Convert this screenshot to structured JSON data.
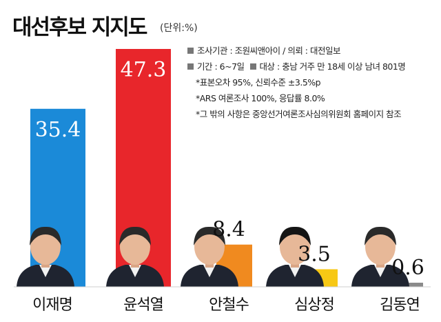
{
  "header": {
    "title": "대선후보 지지도",
    "unit": "(단위:%)"
  },
  "notes": {
    "agency": "조사기관 : 조원씨앤아이 / 의뢰 : 대전일보",
    "period": "기간 : 6~7일",
    "target": "대상 : 충남 거주 만 18세 이상 남녀 801명",
    "error": "*표본오차 95%, 신뢰수준 ±3.5%p",
    "method": "*ARS 여론조사 100%, 응답률 8.0%",
    "etc": "*그 밖의 사항은 중앙선거여론조사심의위원회 홈페이지 참조"
  },
  "chart_data": {
    "type": "bar",
    "title": "대선후보 지지도",
    "unit": "%",
    "categories": [
      "이재명",
      "윤석열",
      "안철수",
      "심상정",
      "김동연"
    ],
    "values": [
      35.4,
      47.3,
      8.4,
      3.5,
      0.6
    ],
    "value_labels": [
      "35.4",
      "47.3",
      "8.4",
      "3.5",
      "0.6"
    ],
    "colors": [
      "#1b8ad8",
      "#e8262b",
      "#f08a1f",
      "#f7c815",
      "#8a8a8a"
    ],
    "value_label_colors": [
      "#ffffff",
      "#ffffff",
      "#111111",
      "#111111",
      "#111111"
    ],
    "value_label_inside": [
      true,
      true,
      false,
      false,
      false
    ],
    "ylim": [
      0,
      50
    ],
    "grid": false,
    "legend": "none"
  }
}
